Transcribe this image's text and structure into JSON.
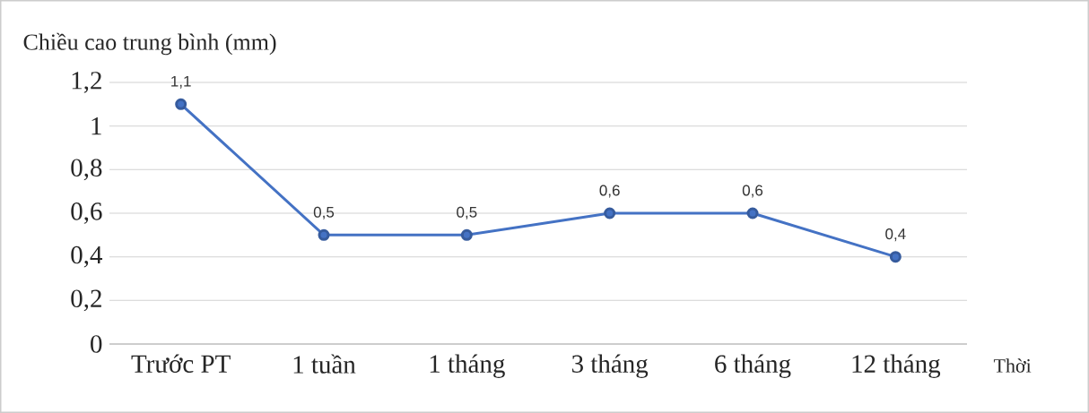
{
  "chart_data": {
    "type": "line",
    "ylabel": "Chiều cao trung bình (mm)",
    "xlabel": "Thời",
    "categories": [
      "Trước PT",
      "1 tuần",
      "1 tháng",
      "3 tháng",
      "6 tháng",
      "12 tháng"
    ],
    "values": [
      1.1,
      0.5,
      0.5,
      0.6,
      0.6,
      0.4
    ],
    "value_labels": [
      "1,1",
      "0,5",
      "0,5",
      "0,6",
      "0,6",
      "0,4"
    ],
    "color": "#4472c4",
    "marker": "circle",
    "line_style": "solid",
    "ylim": [
      0,
      1.2
    ],
    "yticks": [
      0,
      {
        "value": 0.2,
        "label": "0,2"
      },
      {
        "value": 0.4,
        "label": "0,4"
      },
      {
        "value": 0.6,
        "label": "0,6"
      },
      {
        "value": 0.8,
        "label": "0,8"
      },
      1,
      {
        "value": 1.2,
        "label": "1,2"
      }
    ],
    "grid": "y"
  }
}
